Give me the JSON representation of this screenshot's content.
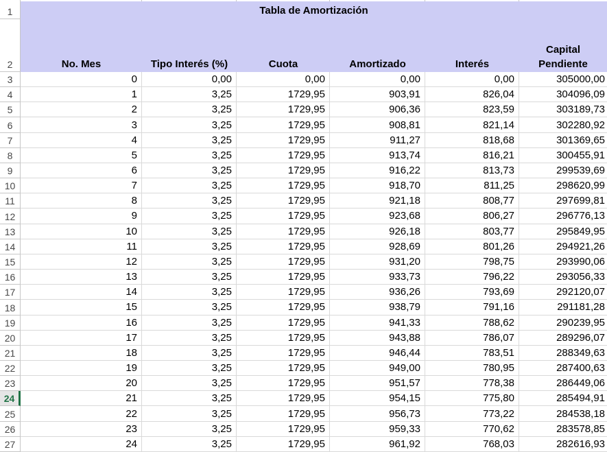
{
  "sheet": {
    "title": "Tabla de Amortización",
    "columns": [
      "No. Mes",
      "Tipo Interés (%)",
      "Cuota",
      "Amortizado",
      "Interés",
      "Capital Pendiente"
    ],
    "row_numbers": [
      "1",
      "2",
      "3",
      "4",
      "5",
      "6",
      "7",
      "8",
      "9",
      "10",
      "11",
      "12",
      "13",
      "14",
      "15",
      "16",
      "17",
      "18",
      "19",
      "20",
      "21",
      "22",
      "23",
      "24",
      "25",
      "26",
      "27"
    ],
    "selected_row_number": "24",
    "rows": [
      [
        "0",
        "0,00",
        "0,00",
        "0,00",
        "0,00",
        "305000,00"
      ],
      [
        "1",
        "3,25",
        "1729,95",
        "903,91",
        "826,04",
        "304096,09"
      ],
      [
        "2",
        "3,25",
        "1729,95",
        "906,36",
        "823,59",
        "303189,73"
      ],
      [
        "3",
        "3,25",
        "1729,95",
        "908,81",
        "821,14",
        "302280,92"
      ],
      [
        "4",
        "3,25",
        "1729,95",
        "911,27",
        "818,68",
        "301369,65"
      ],
      [
        "5",
        "3,25",
        "1729,95",
        "913,74",
        "816,21",
        "300455,91"
      ],
      [
        "6",
        "3,25",
        "1729,95",
        "916,22",
        "813,73",
        "299539,69"
      ],
      [
        "7",
        "3,25",
        "1729,95",
        "918,70",
        "811,25",
        "298620,99"
      ],
      [
        "8",
        "3,25",
        "1729,95",
        "921,18",
        "808,77",
        "297699,81"
      ],
      [
        "9",
        "3,25",
        "1729,95",
        "923,68",
        "806,27",
        "296776,13"
      ],
      [
        "10",
        "3,25",
        "1729,95",
        "926,18",
        "803,77",
        "295849,95"
      ],
      [
        "11",
        "3,25",
        "1729,95",
        "928,69",
        "801,26",
        "294921,26"
      ],
      [
        "12",
        "3,25",
        "1729,95",
        "931,20",
        "798,75",
        "293990,06"
      ],
      [
        "13",
        "3,25",
        "1729,95",
        "933,73",
        "796,22",
        "293056,33"
      ],
      [
        "14",
        "3,25",
        "1729,95",
        "936,26",
        "793,69",
        "292120,07"
      ],
      [
        "15",
        "3,25",
        "1729,95",
        "938,79",
        "791,16",
        "291181,28"
      ],
      [
        "16",
        "3,25",
        "1729,95",
        "941,33",
        "788,62",
        "290239,95"
      ],
      [
        "17",
        "3,25",
        "1729,95",
        "943,88",
        "786,07",
        "289296,07"
      ],
      [
        "18",
        "3,25",
        "1729,95",
        "946,44",
        "783,51",
        "288349,63"
      ],
      [
        "19",
        "3,25",
        "1729,95",
        "949,00",
        "780,95",
        "287400,63"
      ],
      [
        "20",
        "3,25",
        "1729,95",
        "951,57",
        "778,38",
        "286449,06"
      ],
      [
        "21",
        "3,25",
        "1729,95",
        "954,15",
        "775,80",
        "285494,91"
      ],
      [
        "22",
        "3,25",
        "1729,95",
        "956,73",
        "773,22",
        "284538,18"
      ],
      [
        "23",
        "3,25",
        "1729,95",
        "959,33",
        "770,62",
        "283578,85"
      ],
      [
        "24",
        "3,25",
        "1729,95",
        "961,92",
        "768,03",
        "282616,93"
      ]
    ],
    "colors": {
      "header_fill": "#cdcdf5",
      "gridline": "#d9d9d9",
      "row_header_border": "#c6c6c6",
      "row_header_text": "#474747",
      "selected_accent": "#217346",
      "selected_row_header_bg": "#e6e6e6",
      "cell_text": "#000000"
    }
  }
}
